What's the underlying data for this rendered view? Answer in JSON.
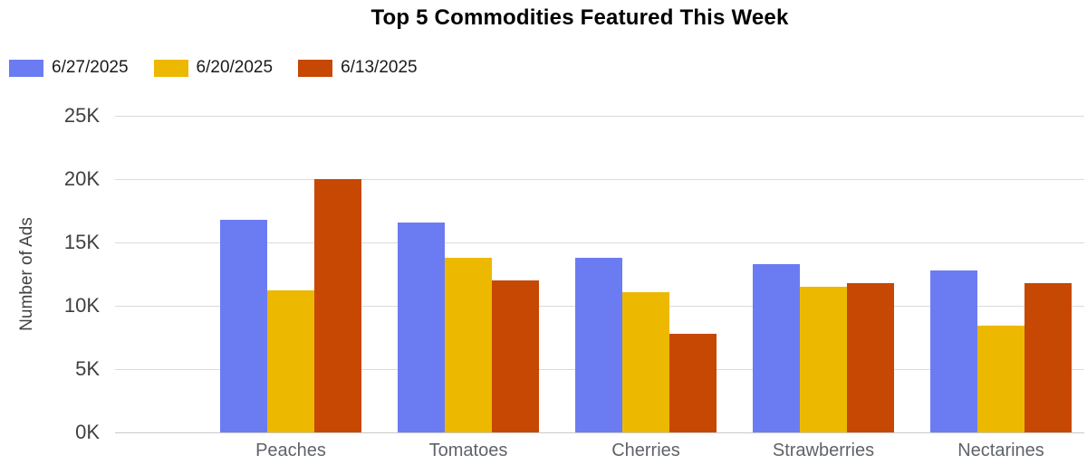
{
  "page": {
    "background": "#ffffff"
  },
  "chart_data": {
    "type": "bar",
    "title": "Top 5 Commodities Featured This Week",
    "categories": [
      "Peaches",
      "Tomatoes",
      "Cherries",
      "Strawberries",
      "Nectarines"
    ],
    "series": [
      {
        "name": "6/27/2025",
        "color": "#6b7cf2",
        "values": [
          16800,
          16600,
          13800,
          13300,
          12800
        ]
      },
      {
        "name": "6/20/2025",
        "color": "#edb800",
        "values": [
          11200,
          13800,
          11100,
          11500,
          8400
        ]
      },
      {
        "name": "6/13/2025",
        "color": "#c74803",
        "values": [
          20000,
          12000,
          7800,
          11800,
          11800
        ]
      }
    ],
    "xlabel": "",
    "ylabel": "Number of Ads",
    "ylim": [
      0,
      25000
    ],
    "y_tick_step": 5000,
    "y_ticks": [
      "0K",
      "5K",
      "10K",
      "15K",
      "20K",
      "25K"
    ],
    "grid": true,
    "legend_position": "top-left",
    "gridline_color": "#dbdbdb",
    "baseline_color": "#c9c9c9",
    "axis_text_color": "#404040",
    "category_text_color": "#5f6368"
  }
}
